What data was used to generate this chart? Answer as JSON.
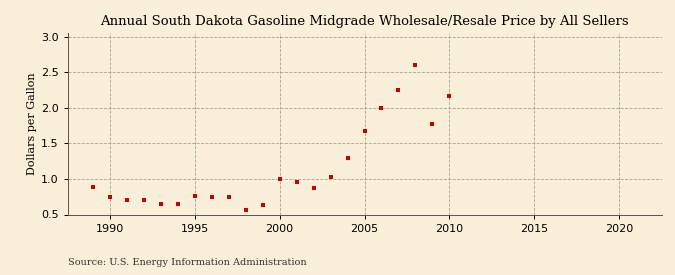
{
  "title": "Annual South Dakota Gasoline Midgrade Wholesale/Resale Price by All Sellers",
  "ylabel": "Dollars per Gallon",
  "source": "Source: U.S. Energy Information Administration",
  "background_color": "#faefd9",
  "marker_color": "#cc0000",
  "xlim": [
    1987.5,
    2022.5
  ],
  "ylim": [
    0.5,
    3.05
  ],
  "xticks": [
    1990,
    1995,
    2000,
    2005,
    2010,
    2015,
    2020
  ],
  "yticks": [
    0.5,
    1.0,
    1.5,
    2.0,
    2.5,
    3.0
  ],
  "years": [
    1989,
    1990,
    1991,
    1992,
    1993,
    1994,
    1995,
    1996,
    1997,
    1998,
    1999,
    2000,
    2001,
    2002,
    2003,
    2004,
    2005,
    2006,
    2007,
    2008,
    2009,
    2010
  ],
  "values": [
    0.88,
    0.75,
    0.7,
    0.71,
    0.65,
    0.65,
    0.76,
    0.75,
    0.74,
    0.57,
    0.63,
    1.0,
    0.95,
    0.87,
    1.02,
    1.3,
    1.68,
    2.0,
    2.25,
    2.6,
    1.77,
    2.17
  ],
  "title_fontsize": 9.5,
  "ylabel_fontsize": 8,
  "tick_labelsize": 8,
  "source_fontsize": 7
}
